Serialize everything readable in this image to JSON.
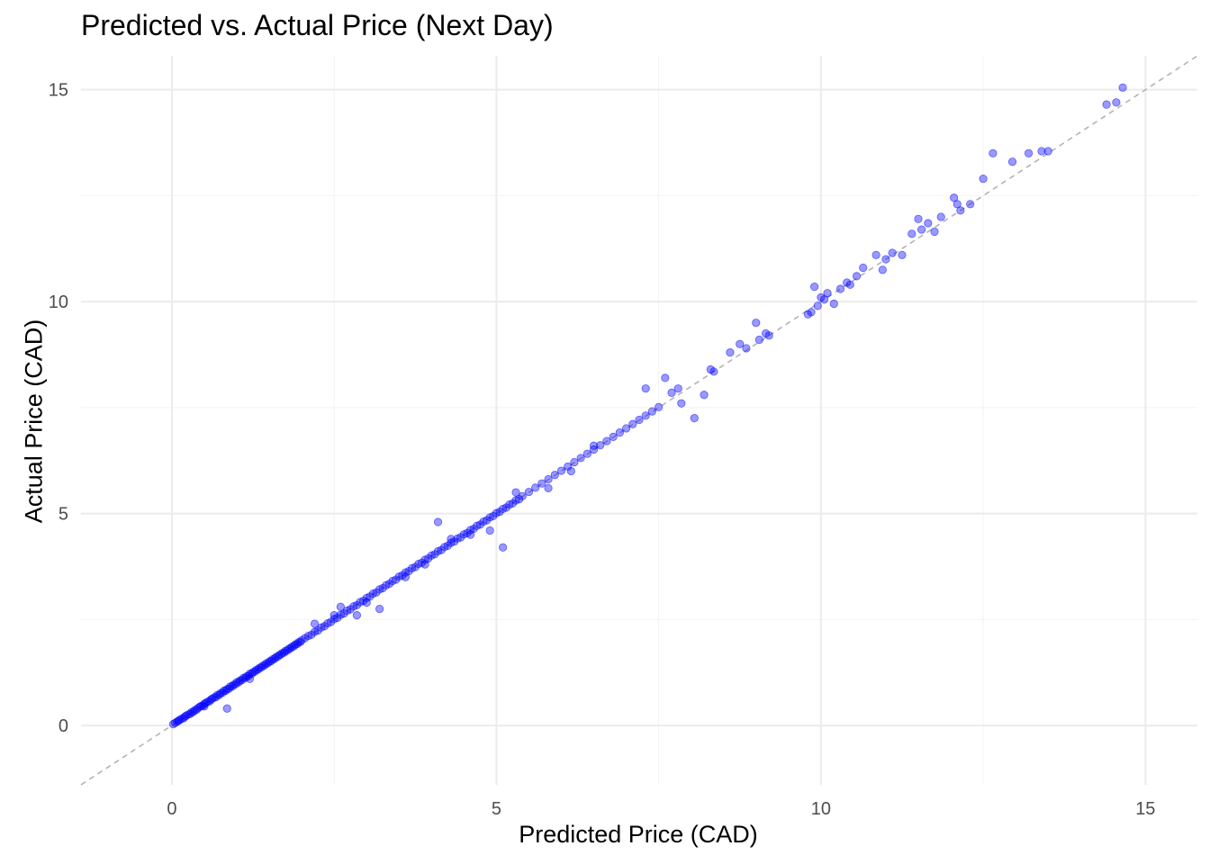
{
  "chart_data": {
    "type": "scatter",
    "title": "Predicted vs. Actual Price (Next Day)",
    "xlabel": "Predicted Price (CAD)",
    "ylabel": "Actual Price (CAD)",
    "xlim": [
      -1.4,
      15.8
    ],
    "ylim": [
      -1.4,
      15.8
    ],
    "x_ticks": [
      0,
      5,
      10,
      15
    ],
    "y_ticks": [
      0,
      5,
      10,
      15
    ],
    "grid": true,
    "legend": "none",
    "reference_line": {
      "style": "dashed",
      "slope": 1,
      "intercept": 0,
      "color": "#b3b3b3"
    },
    "point_color": "#0000ff",
    "point_opacity": 0.4,
    "series": [
      {
        "x": [
          0.02,
          0.05,
          0.08,
          0.1,
          0.12,
          0.15,
          0.18,
          0.2,
          0.22,
          0.25,
          0.28,
          0.3,
          0.33,
          0.35,
          0.38,
          0.4,
          0.43,
          0.45,
          0.48,
          0.5,
          0.52,
          0.55,
          0.58,
          0.6,
          0.62,
          0.65,
          0.68,
          0.7,
          0.73,
          0.75,
          0.78,
          0.8,
          0.83,
          0.85,
          0.88,
          0.9,
          0.93,
          0.95,
          0.98,
          1.0,
          1.03,
          1.05,
          1.08,
          1.1,
          1.13,
          1.15,
          1.18,
          1.2,
          1.23,
          1.25,
          1.28,
          1.3,
          1.33,
          1.35,
          1.38,
          1.4,
          1.43,
          1.45,
          1.48,
          1.5,
          1.53,
          1.55,
          1.58,
          1.6,
          1.63,
          1.65,
          1.68,
          1.7,
          1.73,
          1.75,
          1.78,
          1.8,
          1.83,
          1.85,
          1.88,
          1.9,
          1.93,
          1.95,
          1.98,
          2.0,
          2.05,
          2.1,
          2.15,
          2.2,
          2.25,
          2.3,
          2.35,
          2.4,
          2.45,
          2.5,
          2.55,
          2.6,
          2.65,
          2.7,
          2.75,
          2.8,
          2.85,
          2.9,
          2.95,
          3.0,
          3.05,
          3.1,
          3.15,
          3.2,
          3.25,
          3.3,
          3.35,
          3.4,
          3.45,
          3.5,
          3.55,
          3.6,
          3.65,
          3.7,
          3.75,
          3.8,
          3.85,
          3.9,
          3.95,
          4.0,
          4.05,
          4.1,
          4.15,
          4.2,
          4.25,
          4.3,
          4.35,
          4.4,
          4.45,
          4.5,
          4.55,
          4.6,
          4.65,
          4.7,
          4.75,
          4.8,
          4.85,
          4.9,
          4.95,
          5.0,
          5.05,
          5.1,
          5.15,
          5.2,
          5.25,
          5.3,
          5.35,
          5.4,
          5.5,
          5.6,
          5.7,
          5.8,
          5.9,
          6.0,
          6.1,
          6.2,
          6.3,
          6.4,
          6.5,
          6.6,
          6.7,
          6.8,
          6.9,
          7.0,
          7.1,
          7.2,
          7.3,
          7.4,
          7.5,
          0.85,
          2.85,
          3.2,
          5.1,
          4.9,
          4.1,
          3.9,
          5.8,
          2.2,
          2.6,
          7.3,
          7.6,
          7.7,
          7.8,
          7.85,
          8.05,
          8.2,
          8.3,
          8.35,
          8.6,
          8.75,
          8.85,
          9.0,
          9.05,
          9.15,
          9.2,
          9.8,
          9.85,
          9.9,
          9.95,
          10.0,
          10.05,
          10.1,
          10.2,
          10.3,
          10.4,
          10.45,
          10.55,
          10.65,
          10.85,
          10.95,
          11.0,
          11.1,
          11.25,
          11.4,
          11.5,
          11.55,
          11.65,
          11.75,
          11.85,
          12.05,
          12.1,
          12.15,
          12.3,
          12.5,
          12.65,
          12.95,
          13.2,
          13.4,
          13.5,
          14.4,
          14.55,
          14.65,
          0.5,
          1.2,
          2.5,
          3.0,
          3.6,
          4.3,
          4.6,
          5.3,
          6.15,
          6.5
        ],
        "y": [
          0.03,
          0.06,
          0.09,
          0.11,
          0.13,
          0.16,
          0.17,
          0.21,
          0.23,
          0.26,
          0.27,
          0.31,
          0.32,
          0.36,
          0.37,
          0.41,
          0.44,
          0.46,
          0.47,
          0.51,
          0.53,
          0.56,
          0.57,
          0.61,
          0.63,
          0.66,
          0.67,
          0.72,
          0.72,
          0.76,
          0.77,
          0.82,
          0.82,
          0.86,
          0.87,
          0.92,
          0.92,
          0.96,
          0.97,
          1.02,
          1.02,
          1.06,
          1.07,
          1.12,
          1.12,
          1.16,
          1.17,
          1.22,
          1.22,
          1.26,
          1.27,
          1.31,
          1.32,
          1.36,
          1.37,
          1.41,
          1.42,
          1.46,
          1.47,
          1.51,
          1.52,
          1.56,
          1.57,
          1.61,
          1.62,
          1.66,
          1.67,
          1.71,
          1.72,
          1.76,
          1.77,
          1.81,
          1.82,
          1.86,
          1.87,
          1.91,
          1.92,
          1.96,
          1.97,
          2.01,
          2.06,
          2.11,
          2.14,
          2.21,
          2.24,
          2.31,
          2.34,
          2.41,
          2.44,
          2.51,
          2.54,
          2.61,
          2.64,
          2.71,
          2.74,
          2.81,
          2.84,
          2.91,
          2.94,
          3.01,
          3.04,
          3.11,
          3.14,
          3.21,
          3.24,
          3.31,
          3.34,
          3.41,
          3.44,
          3.51,
          3.54,
          3.61,
          3.64,
          3.71,
          3.74,
          3.81,
          3.84,
          3.91,
          3.94,
          4.01,
          4.04,
          4.11,
          4.14,
          4.21,
          4.24,
          4.31,
          4.34,
          4.41,
          4.44,
          4.51,
          4.54,
          4.61,
          4.64,
          4.71,
          4.74,
          4.81,
          4.84,
          4.91,
          4.94,
          5.01,
          5.04,
          5.11,
          5.14,
          5.21,
          5.24,
          5.31,
          5.34,
          5.41,
          5.51,
          5.61,
          5.71,
          5.81,
          5.91,
          6.01,
          6.11,
          6.21,
          6.31,
          6.41,
          6.51,
          6.61,
          6.71,
          6.81,
          6.91,
          7.01,
          7.11,
          7.21,
          7.31,
          7.41,
          7.51,
          0.4,
          2.6,
          2.75,
          4.2,
          4.6,
          4.8,
          3.8,
          5.6,
          2.4,
          2.8,
          7.95,
          8.2,
          7.85,
          7.95,
          7.6,
          7.25,
          7.8,
          8.4,
          8.35,
          8.8,
          9.0,
          8.9,
          9.5,
          9.1,
          9.25,
          9.2,
          9.7,
          9.75,
          10.35,
          9.9,
          10.1,
          10.05,
          10.2,
          9.95,
          10.3,
          10.45,
          10.4,
          10.6,
          10.8,
          11.1,
          10.75,
          11.0,
          11.15,
          11.1,
          11.6,
          11.95,
          11.7,
          11.85,
          11.65,
          12.0,
          12.45,
          12.3,
          12.15,
          12.3,
          12.9,
          13.5,
          13.3,
          13.5,
          13.55,
          13.55,
          14.65,
          14.7,
          15.05,
          0.45,
          1.1,
          2.6,
          2.9,
          3.5,
          4.4,
          4.5,
          5.5,
          6.0,
          6.6
        ]
      }
    ]
  }
}
